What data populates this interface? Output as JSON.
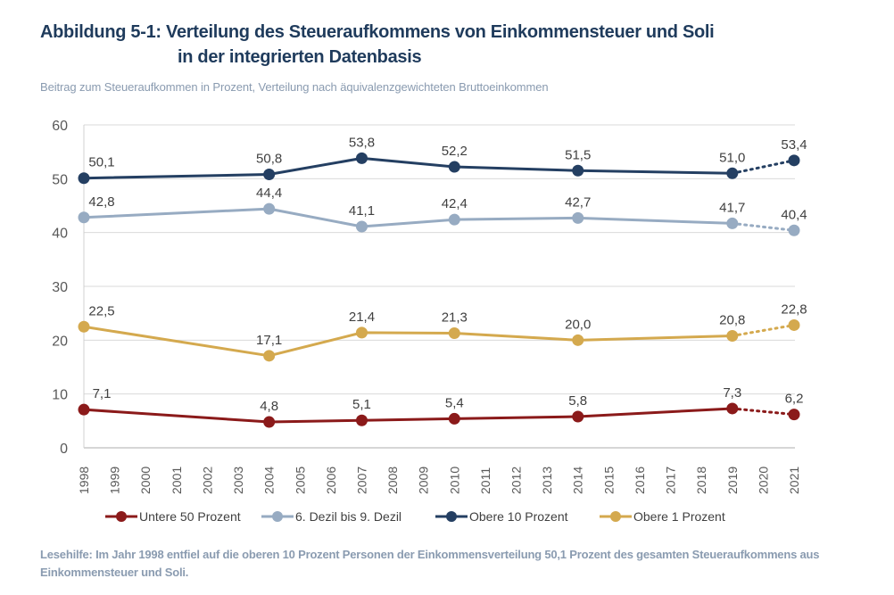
{
  "header": {
    "title_line1": "Abbildung 5-1: Verteilung des Steueraufkommens von Einkommensteuer und Soli",
    "title_line2": "in der integrierten Datenbasis",
    "subtitle": "Beitrag zum Steueraufkommen in Prozent, Verteilung nach äquivalenzgewichteten Bruttoeinkommen"
  },
  "footer": {
    "note": "Lesehilfe: Im Jahr 1998 entfiel auf die oberen 10 Prozent Personen der Einkommensverteilung 50,1 Prozent des gesamten Steueraufkommens aus Einkommensteuer und Soli."
  },
  "chart_data": {
    "type": "line",
    "title": "Abbildung 5-1: Verteilung des Steueraufkommens von Einkommensteuer und Soli in der integrierten Datenbasis",
    "subtitle": "Beitrag zum Steueraufkommen in Prozent, Verteilung nach äquivalenzgewichteten Bruttoeinkommen",
    "xlabel": "",
    "ylabel": "",
    "x_ticks": [
      "1998",
      "1999",
      "2000",
      "2001",
      "2002",
      "2003",
      "2004",
      "2005",
      "2006",
      "2007",
      "2008",
      "2009",
      "2010",
      "2011",
      "2012",
      "2013",
      "2014",
      "2015",
      "2016",
      "2017",
      "2018",
      "2019",
      "2020",
      "2021"
    ],
    "xlim": [
      1998,
      2021
    ],
    "y_ticks": [
      "0",
      "10",
      "20",
      "30",
      "40",
      "50",
      "60"
    ],
    "ylim": [
      0,
      60
    ],
    "grid": true,
    "legend_position": "bottom",
    "dotted_last_segment": true,
    "series": [
      {
        "name": "Untere 50 Prozent",
        "color": "#8b1a1a",
        "x": [
          1998,
          2004,
          2007,
          2010,
          2014,
          2019,
          2021
        ],
        "values": [
          7.1,
          4.8,
          5.1,
          5.4,
          5.8,
          7.3,
          6.2
        ],
        "labels": [
          "7,1",
          "4,8",
          "5,1",
          "5,4",
          "5,8",
          "7,3",
          "6,2"
        ]
      },
      {
        "name": "6. Dezil bis 9. Dezil",
        "color": "#97abc2",
        "x": [
          1998,
          2004,
          2007,
          2010,
          2014,
          2019,
          2021
        ],
        "values": [
          42.8,
          44.4,
          41.1,
          42.4,
          42.7,
          41.7,
          40.4
        ],
        "labels": [
          "42,8",
          "44,4",
          "41,1",
          "42,4",
          "42,7",
          "41,7",
          "40,4"
        ]
      },
      {
        "name": "Obere 10 Prozent",
        "color": "#243f62",
        "x": [
          1998,
          2004,
          2007,
          2010,
          2014,
          2019,
          2021
        ],
        "values": [
          50.1,
          50.8,
          53.8,
          52.2,
          51.5,
          51.0,
          53.4
        ],
        "labels": [
          "50,1",
          "50,8",
          "53,8",
          "52,2",
          "51,5",
          "51,0",
          "53,4"
        ]
      },
      {
        "name": "Obere 1 Prozent",
        "color": "#d4a94e",
        "x": [
          1998,
          2004,
          2007,
          2010,
          2014,
          2019,
          2021
        ],
        "values": [
          22.5,
          17.1,
          21.4,
          21.3,
          20.0,
          20.8,
          22.8
        ],
        "labels": [
          "22,5",
          "17,1",
          "21,4",
          "21,3",
          "20,0",
          "20,8",
          "22,8"
        ]
      }
    ]
  }
}
